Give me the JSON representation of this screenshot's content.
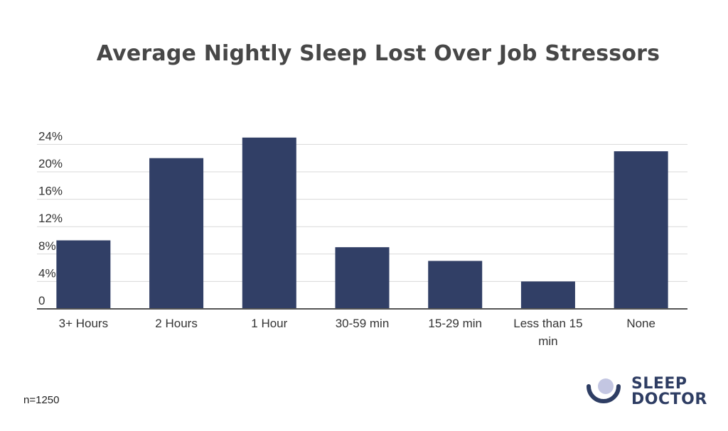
{
  "colors": {
    "bar": "#313f66",
    "grid": "#d9d9d9",
    "axis": "#555555",
    "text": "#333333",
    "title": "#474747"
  },
  "footnote": "n=1250",
  "logo": {
    "line1": "SLEEP",
    "line2": "DOCTOR",
    "icon": "moon-logo-icon"
  },
  "chart_data": {
    "type": "bar",
    "title": "Average Nightly Sleep Lost Over Job Stressors",
    "xlabel": "",
    "ylabel": "",
    "categories": [
      "3+ Hours",
      "2 Hours",
      "1 Hour",
      "30-59 min",
      "15-29 min",
      "Less than 15 min",
      "None"
    ],
    "values": [
      10,
      22,
      25,
      9,
      7,
      4,
      23
    ],
    "ylim": [
      0,
      24
    ],
    "yticks": [
      0,
      4,
      8,
      12,
      16,
      20,
      24
    ],
    "ytick_labels": [
      "0",
      "4%",
      "8%",
      "12%",
      "16%",
      "20%",
      "24%"
    ],
    "grid": true,
    "legend": "none"
  }
}
